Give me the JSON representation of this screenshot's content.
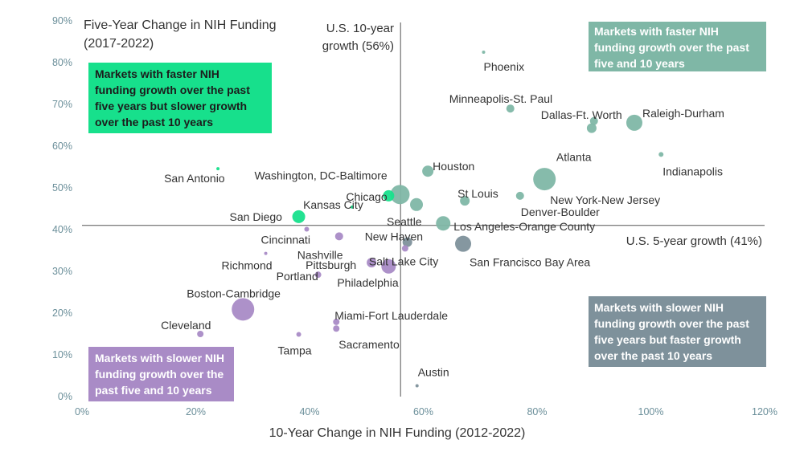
{
  "chart_data": {
    "type": "scatter",
    "title": "Five-Year Change in NIH Funding (2017-2022)",
    "xlabel": "10-Year Change in NIH Funding (2012-2022)",
    "ylabel": "Five-Year Change in NIH Funding (2017-2022)",
    "xlim": [
      0,
      120
    ],
    "ylim": [
      0,
      90
    ],
    "x_ticks": [
      "0%",
      "20%",
      "40%",
      "60%",
      "80%",
      "100%",
      "120%"
    ],
    "y_ticks": [
      "0%",
      "10%",
      "20%",
      "30%",
      "40%",
      "50%",
      "60%",
      "70%",
      "80%",
      "90%"
    ],
    "grid": false,
    "reference_lines": {
      "x_value": 56,
      "x_label": "U.S. 10-year growth (56%)",
      "y_value": 41,
      "y_label": "U.S. 5-year growth (41%)"
    },
    "quadrant_labels": [
      {
        "text": "Markets with faster NIH funding growth over the past five and 10 years",
        "color": "#7fb7a6"
      },
      {
        "text": "Markets with faster NIH funding growth over the past five years but slower growth over the past 10 years",
        "color": "#17e08c"
      },
      {
        "text": "Markets with slower NIH funding growth over the past five years but faster growth over the past 10 years",
        "color": "#7e919b"
      },
      {
        "text": "Markets with slower NIH funding growth over the past five and 10 years",
        "color": "#a98bc6"
      }
    ],
    "colors": {
      "faster_both": "#7fb7a6",
      "faster_five_slower_ten": "#17e08c",
      "slower_five_faster_ten": "#7e919b",
      "slower_both": "#a98bc6",
      "reference_line": "#555555",
      "tick_label": "#6b8f9a"
    },
    "points": [
      {
        "name": "Phoenix",
        "x": 70.6,
        "y": 82.5,
        "size": 2,
        "group": "faster_both"
      },
      {
        "name": "Minneapolis-St. Paul",
        "x": 75.3,
        "y": 69,
        "size": 5,
        "group": "faster_both"
      },
      {
        "name": "Dallas-Ft. Worth",
        "x": 90,
        "y": 66,
        "size": 5,
        "group": "faster_both"
      },
      {
        "name": "Atlanta",
        "x": 89.6,
        "y": 64.3,
        "size": 6,
        "group": "faster_both"
      },
      {
        "name": "Raleigh-Durham",
        "x": 97.1,
        "y": 65.6,
        "size": 10,
        "group": "faster_both"
      },
      {
        "name": "Indianapolis",
        "x": 101.8,
        "y": 58,
        "size": 3,
        "group": "faster_both"
      },
      {
        "name": "Houston",
        "x": 60.8,
        "y": 54,
        "size": 7,
        "group": "faster_both"
      },
      {
        "name": "New York-New Jersey",
        "x": 81.3,
        "y": 52.1,
        "size": 14,
        "group": "faster_both"
      },
      {
        "name": "St Louis",
        "x": 67.3,
        "y": 46.9,
        "size": 6,
        "group": "faster_both"
      },
      {
        "name": "Denver-Boulder",
        "x": 77,
        "y": 48.1,
        "size": 5,
        "group": "faster_both"
      },
      {
        "name": "Seattle",
        "x": 58.8,
        "y": 46,
        "size": 8,
        "group": "faster_both"
      },
      {
        "name": "Washington, DC-Baltimore",
        "x": 55.9,
        "y": 48.4,
        "size": 12,
        "group": "faster_both"
      },
      {
        "name": "Los Angeles-Orange County",
        "x": 63.5,
        "y": 41.5,
        "size": 9,
        "group": "faster_both"
      },
      {
        "name": "San Antonio",
        "x": 23.9,
        "y": 54.6,
        "size": 2,
        "group": "faster_five_slower_ten"
      },
      {
        "name": "Chicago",
        "x": 53.9,
        "y": 48.1,
        "size": 7,
        "group": "faster_five_slower_ten"
      },
      {
        "name": "Kansas City",
        "x": 47.5,
        "y": 45.4,
        "size": 2,
        "group": "faster_five_slower_ten"
      },
      {
        "name": "San Diego",
        "x": 38.1,
        "y": 43.1,
        "size": 8,
        "group": "faster_five_slower_ten"
      },
      {
        "name": "San Francisco Bay Area",
        "x": 67,
        "y": 36.6,
        "size": 10,
        "group": "slower_five_faster_ten"
      },
      {
        "name": "New Haven",
        "x": 57.2,
        "y": 37,
        "size": 6,
        "group": "slower_five_faster_ten"
      },
      {
        "name": "Austin",
        "x": 58.9,
        "y": 2.6,
        "size": 2,
        "group": "slower_five_faster_ten"
      },
      {
        "name": "Cincinnati",
        "x": 39.5,
        "y": 40.1,
        "size": 3,
        "group": "slower_both"
      },
      {
        "name": "Nashville",
        "x": 45.2,
        "y": 38.4,
        "size": 5,
        "group": "slower_both"
      },
      {
        "name": "Richmond",
        "x": 32.3,
        "y": 34.3,
        "size": 2,
        "group": "slower_both"
      },
      {
        "name": "Pittsburgh",
        "x": 50.9,
        "y": 32.1,
        "size": 6,
        "group": "slower_both"
      },
      {
        "name": "Salt Lake City",
        "x": 56.8,
        "y": 35.5,
        "size": 4,
        "group": "slower_both"
      },
      {
        "name": "Portland",
        "x": 41.5,
        "y": 29.2,
        "size": 4,
        "group": "slower_both"
      },
      {
        "name": "Philadelphia",
        "x": 53.9,
        "y": 31.2,
        "size": 9,
        "group": "slower_both"
      },
      {
        "name": "Boston-Cambridge",
        "x": 28.3,
        "y": 20.9,
        "size": 14,
        "group": "slower_both"
      },
      {
        "name": "Miami-Fort Lauderdale",
        "x": 44.7,
        "y": 17.9,
        "size": 4,
        "group": "slower_both"
      },
      {
        "name": "Cleveland",
        "x": 20.8,
        "y": 15,
        "size": 4,
        "group": "slower_both"
      },
      {
        "name": "Tampa",
        "x": 38.1,
        "y": 14.9,
        "size": 3,
        "group": "slower_both"
      },
      {
        "name": "Sacramento",
        "x": 44.7,
        "y": 16.3,
        "size": 4,
        "group": "slower_both"
      }
    ]
  }
}
